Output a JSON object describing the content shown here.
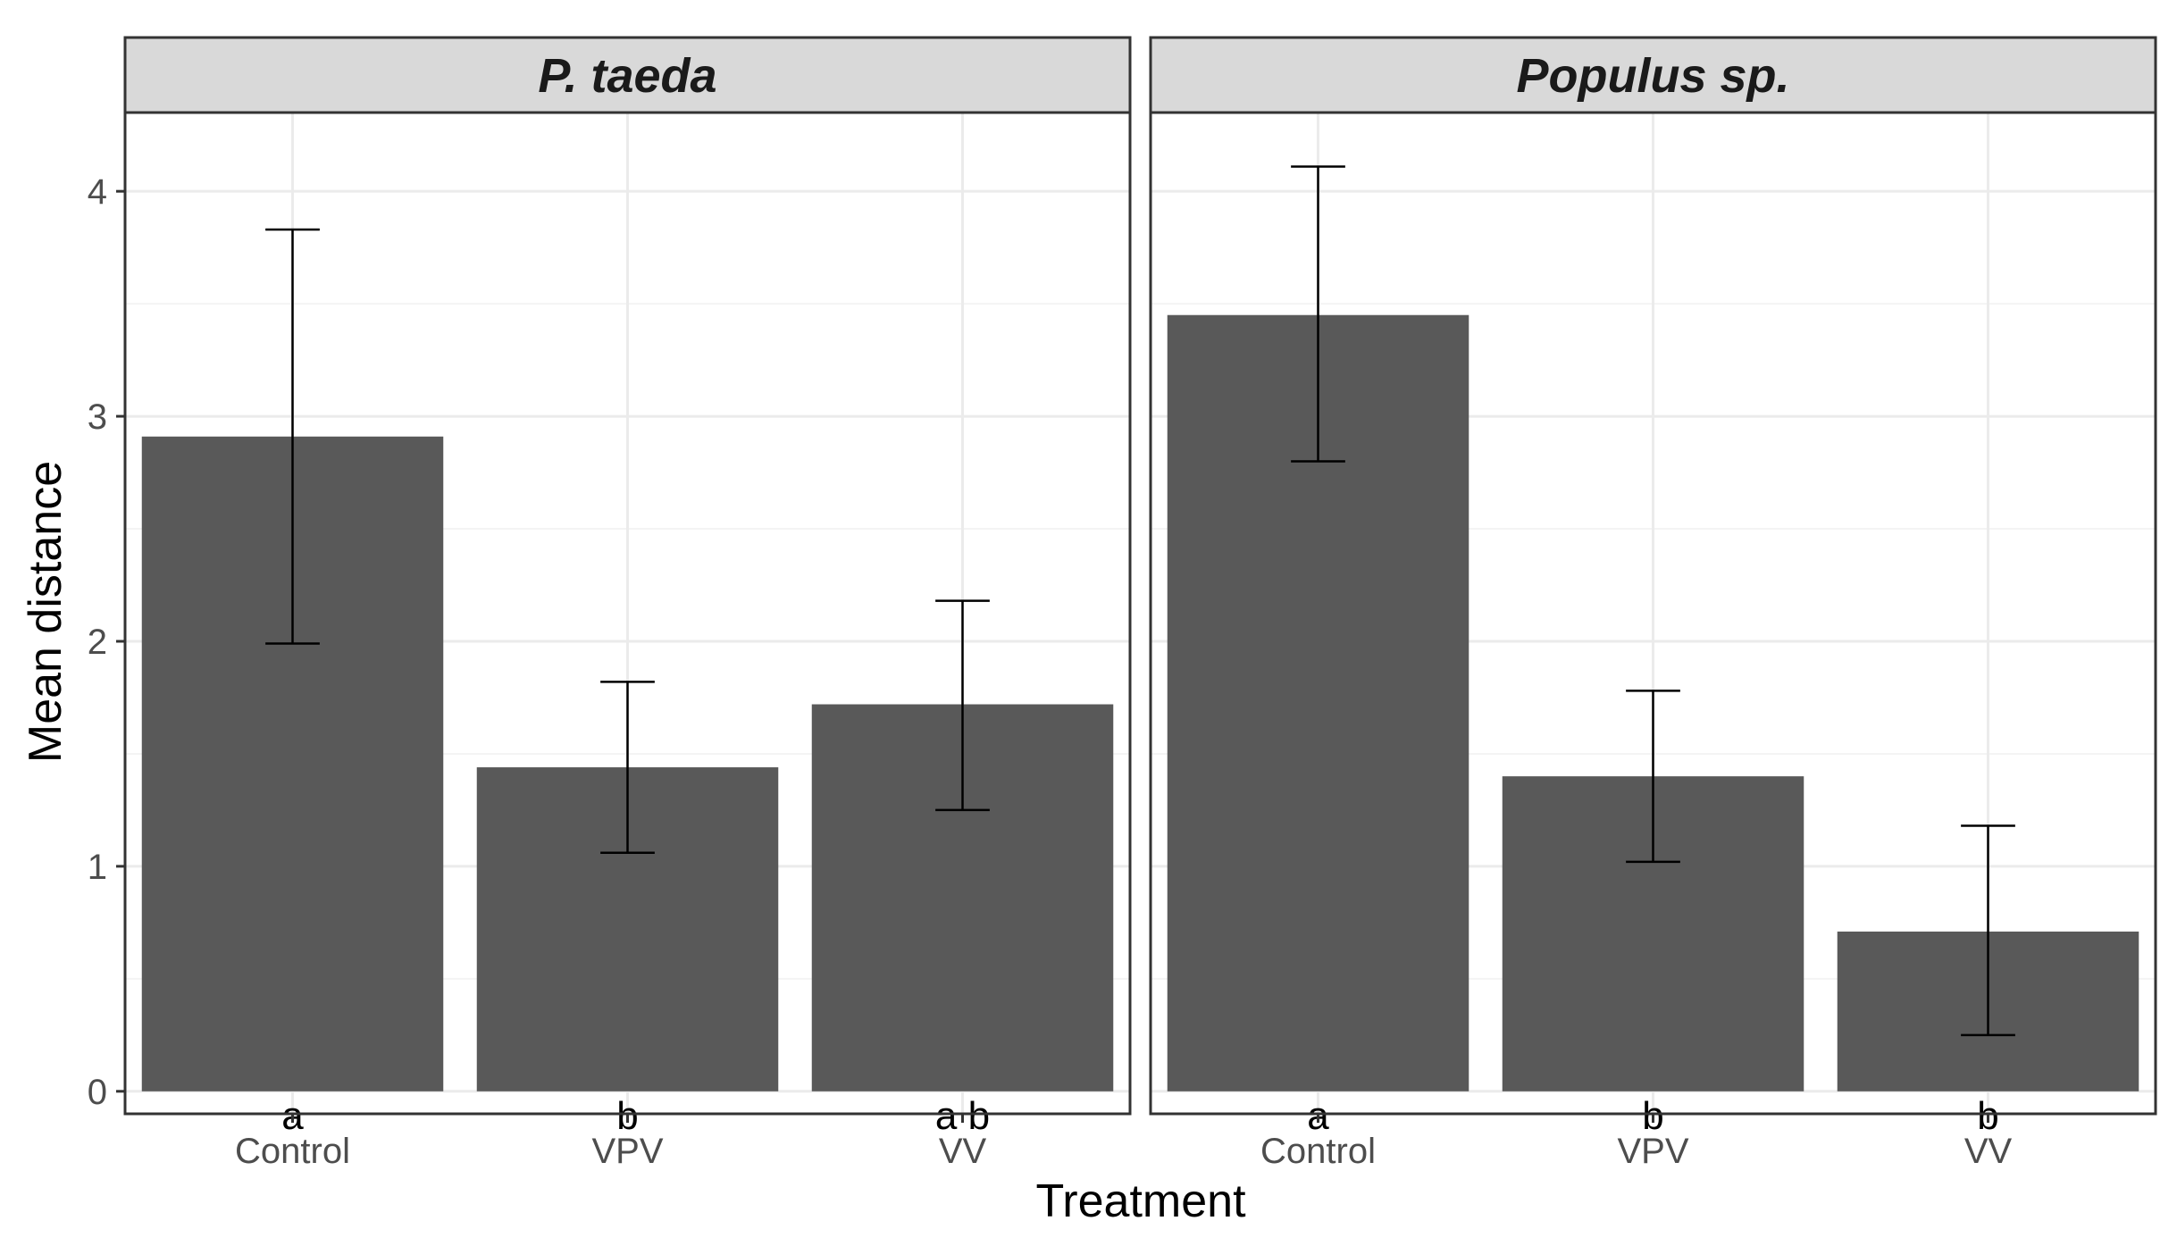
{
  "chart_data": {
    "type": "bar",
    "xlabel": "Treatment",
    "ylabel": "Mean distance",
    "ylim": [
      -0.1,
      4.35
    ],
    "yticks": [
      0,
      1,
      2,
      3,
      4
    ],
    "grid": true,
    "colors": {
      "bar": "#595959",
      "strip_bg": "#d9d9d9",
      "grid_major": "#ebebeb",
      "grid_minor": "#f4f4f4",
      "border": "#333333",
      "errorbar": "#000000"
    },
    "panels": [
      {
        "title": "P. taeda",
        "categories": [
          "Control",
          "VPV",
          "VV"
        ],
        "values": [
          2.91,
          1.44,
          1.72
        ],
        "lower": [
          1.99,
          1.06,
          1.25
        ],
        "upper": [
          3.83,
          1.82,
          2.18
        ],
        "labels": [
          "a",
          "b",
          "a b"
        ]
      },
      {
        "title": "Populus sp.",
        "categories": [
          "Control",
          "VPV",
          "VV"
        ],
        "values": [
          3.45,
          1.4,
          0.71
        ],
        "lower": [
          2.8,
          1.02,
          0.25
        ],
        "upper": [
          4.11,
          1.78,
          1.18
        ],
        "labels": [
          "a",
          "b",
          "b"
        ]
      }
    ]
  }
}
